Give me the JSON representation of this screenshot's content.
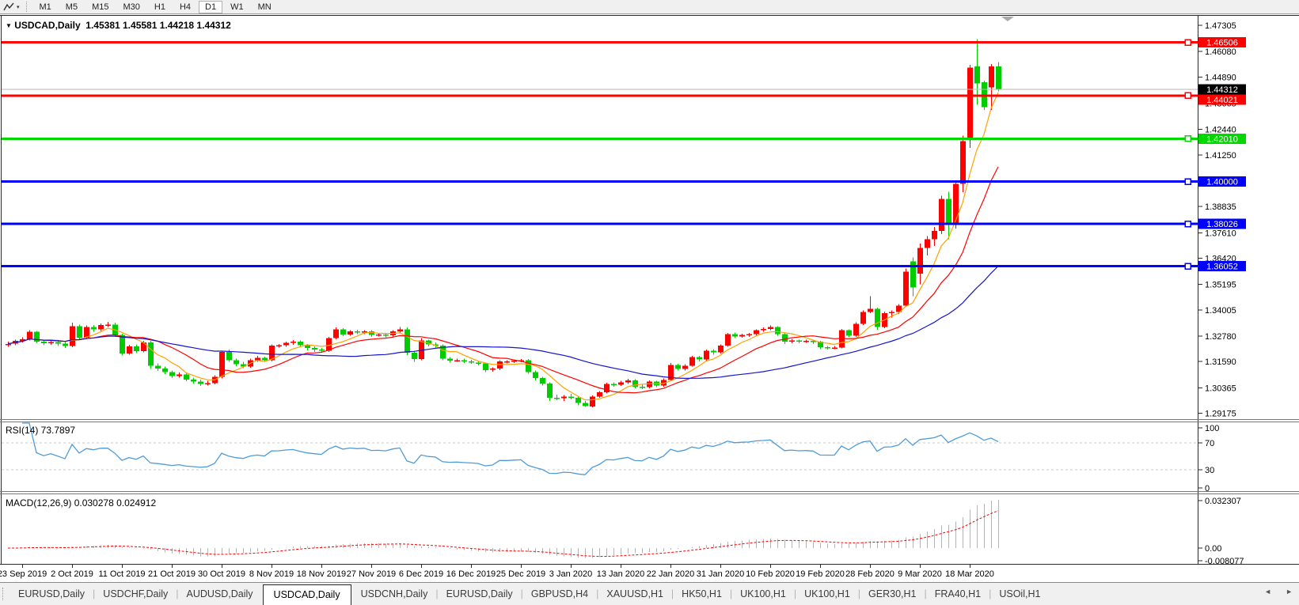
{
  "toolbar": {
    "timeframes": [
      "M1",
      "M5",
      "M15",
      "M30",
      "H1",
      "H4",
      "D1",
      "W1",
      "MN"
    ],
    "active_timeframe": "D1",
    "indicator_icon": "zigzag-indicator",
    "dropdown_caret": "▾"
  },
  "chart": {
    "collapse_caret": "▼",
    "title_symbol": "USDCAD,Daily",
    "title_ohlc": "1.45381 1.45581 1.44218 1.44312",
    "current_price": {
      "label": "1.44312",
      "value": 1.44312,
      "badge_bg": "#000000",
      "line_color": "#b4b4b4"
    },
    "price_axis": {
      "max": 1.4775,
      "min": 1.289,
      "ticks": [
        "1.47305",
        "1.46080",
        "1.44890",
        "1.43665",
        "1.42440",
        "1.41250",
        "1.38835",
        "1.37610",
        "1.36420",
        "1.35195",
        "1.34005",
        "1.32780",
        "1.31590",
        "1.30365",
        "1.29175"
      ]
    },
    "hlines": [
      {
        "label": "1.46506",
        "value": 1.46506,
        "color": "#ff0000"
      },
      {
        "label": "1.44021",
        "value": 1.44021,
        "color": "#ff0000"
      },
      {
        "label": "1.42010",
        "value": 1.4201,
        "color": "#00d800"
      },
      {
        "label": "1.40000",
        "value": 1.4,
        "color": "#0000ff"
      },
      {
        "label": "1.38026",
        "value": 1.38026,
        "color": "#0000ff"
      },
      {
        "label": "1.36052",
        "value": 1.36052,
        "color": "#0000ff"
      }
    ],
    "date_axis": [
      "23 Sep 2019",
      "2 Oct 2019",
      "11 Oct 2019",
      "21 Oct 2019",
      "30 Oct 2019",
      "8 Nov 2019",
      "18 Nov 2019",
      "27 Nov 2019",
      "6 Dec 2019",
      "16 Dec 2019",
      "25 Dec 2019",
      "3 Jan 2020",
      "13 Jan 2020",
      "22 Jan 2020",
      "31 Jan 2020",
      "10 Feb 2020",
      "19 Feb 2020",
      "28 Feb 2020",
      "9 Mar 2020",
      "18 Mar 2020"
    ]
  },
  "rsi_panel": {
    "label": "RSI(14) 73.7897",
    "period": 14,
    "current": 73.7897,
    "levels": [
      70,
      30
    ],
    "axis_labels": [
      "100",
      "70",
      "30",
      "0"
    ],
    "line_color": "#4f9bd8",
    "level_color": "#c8c8c8"
  },
  "macd_panel": {
    "label": "MACD(12,26,9) 0.030278 0.024912",
    "fast": 12,
    "slow": 26,
    "signal_period": 9,
    "main_value": 0.030278,
    "signal_value": 0.024912,
    "axis_labels": [
      "0.032307",
      "0.00",
      "-0.008077"
    ],
    "axis_max": 0.032307,
    "axis_min": -0.008077,
    "histogram_color": "#b4b4b4",
    "signal_color": "#ff0000"
  },
  "tabbar": {
    "scroll_left": "◄",
    "scroll_right": "►",
    "tabs": [
      {
        "label": "EURUSD,Daily",
        "active": false
      },
      {
        "label": "USDCHF,Daily",
        "active": false
      },
      {
        "label": "AUDUSD,Daily",
        "active": false
      },
      {
        "label": "USDCAD,Daily",
        "active": true
      },
      {
        "label": "USDCNH,Daily",
        "active": false
      },
      {
        "label": "EURUSD,Daily",
        "active": false
      },
      {
        "label": "GBPUSD,H4",
        "active": false
      },
      {
        "label": "XAUUSD,H1",
        "active": false
      },
      {
        "label": "HK50,H1",
        "active": false
      },
      {
        "label": "UK100,H1",
        "active": false
      },
      {
        "label": "UK100,H1",
        "active": false
      },
      {
        "label": "GER30,H1",
        "active": false
      },
      {
        "label": "FRA40,H1",
        "active": false
      },
      {
        "label": "USOil,H1",
        "active": false
      }
    ]
  },
  "chart_data": {
    "type": "candlestick",
    "symbol": "USDCAD",
    "timeframe": "Daily",
    "up_color": "#ff0000",
    "down_color": "#00cc00",
    "moving_averages": [
      {
        "period": 6,
        "color": "#ffa000"
      },
      {
        "period": 13,
        "color": "#ff0000"
      },
      {
        "period": 34,
        "color": "#1414cd"
      }
    ],
    "candles": [
      [
        1.3235,
        1.3252,
        1.3228,
        1.3242
      ],
      [
        1.3242,
        1.3262,
        1.3236,
        1.3255
      ],
      [
        1.3255,
        1.3272,
        1.3248,
        1.3263
      ],
      [
        1.3263,
        1.3305,
        1.3258,
        1.3298
      ],
      [
        1.3298,
        1.3302,
        1.3244,
        1.3253
      ],
      [
        1.3253,
        1.3262,
        1.3235,
        1.3244
      ],
      [
        1.3244,
        1.3259,
        1.3238,
        1.3251
      ],
      [
        1.3251,
        1.3258,
        1.3232,
        1.3243
      ],
      [
        1.3243,
        1.3251,
        1.3222,
        1.3232
      ],
      [
        1.3232,
        1.334,
        1.3227,
        1.3325
      ],
      [
        1.3325,
        1.3332,
        1.3262,
        1.327
      ],
      [
        1.327,
        1.3328,
        1.3265,
        1.332
      ],
      [
        1.332,
        1.333,
        1.3298,
        1.331
      ],
      [
        1.331,
        1.3338,
        1.3302,
        1.333
      ],
      [
        1.333,
        1.3345,
        1.332,
        1.3332
      ],
      [
        1.3332,
        1.334,
        1.3275,
        1.3284
      ],
      [
        1.3284,
        1.329,
        1.3188,
        1.3197
      ],
      [
        1.3197,
        1.3238,
        1.3192,
        1.323
      ],
      [
        1.323,
        1.324,
        1.3198,
        1.3207
      ],
      [
        1.3207,
        1.3255,
        1.3202,
        1.3248
      ],
      [
        1.3248,
        1.3255,
        1.3125,
        1.314
      ],
      [
        1.314,
        1.315,
        1.3115,
        1.3126
      ],
      [
        1.3126,
        1.3135,
        1.31,
        1.311
      ],
      [
        1.311,
        1.3118,
        1.3082,
        1.3091
      ],
      [
        1.3091,
        1.3108,
        1.3084,
        1.3099
      ],
      [
        1.3099,
        1.3105,
        1.3068,
        1.3075
      ],
      [
        1.3075,
        1.3084,
        1.3056,
        1.3066
      ],
      [
        1.3066,
        1.3075,
        1.3045,
        1.3054
      ],
      [
        1.3054,
        1.307,
        1.3048,
        1.3059
      ],
      [
        1.3059,
        1.3095,
        1.3052,
        1.3087
      ],
      [
        1.3087,
        1.321,
        1.308,
        1.3204
      ],
      [
        1.3204,
        1.3215,
        1.3158,
        1.3166
      ],
      [
        1.3166,
        1.3172,
        1.3138,
        1.3146
      ],
      [
        1.3146,
        1.3158,
        1.3128,
        1.3135
      ],
      [
        1.3135,
        1.3172,
        1.313,
        1.3165
      ],
      [
        1.3165,
        1.3185,
        1.3158,
        1.3177
      ],
      [
        1.3177,
        1.3182,
        1.3158,
        1.3165
      ],
      [
        1.3165,
        1.324,
        1.316,
        1.3233
      ],
      [
        1.3233,
        1.3242,
        1.3225,
        1.3235
      ],
      [
        1.3235,
        1.3252,
        1.3228,
        1.3246
      ],
      [
        1.3246,
        1.326,
        1.3238,
        1.3253
      ],
      [
        1.3253,
        1.3258,
        1.3228,
        1.3236
      ],
      [
        1.3236,
        1.3242,
        1.3212,
        1.3222
      ],
      [
        1.3222,
        1.323,
        1.3205,
        1.3215
      ],
      [
        1.3215,
        1.3222,
        1.32,
        1.3209
      ],
      [
        1.3209,
        1.3275,
        1.3204,
        1.3269
      ],
      [
        1.3269,
        1.3318,
        1.3264,
        1.331
      ],
      [
        1.331,
        1.3315,
        1.3278,
        1.3285
      ],
      [
        1.3285,
        1.3306,
        1.328,
        1.33
      ],
      [
        1.33,
        1.3308,
        1.3287,
        1.3295
      ],
      [
        1.3295,
        1.3306,
        1.3288,
        1.33
      ],
      [
        1.33,
        1.3305,
        1.3275,
        1.3283
      ],
      [
        1.3283,
        1.3292,
        1.3276,
        1.3285
      ],
      [
        1.3285,
        1.329,
        1.3272,
        1.3281
      ],
      [
        1.3281,
        1.3305,
        1.3275,
        1.33
      ],
      [
        1.33,
        1.332,
        1.3293,
        1.331
      ],
      [
        1.331,
        1.3318,
        1.319,
        1.32
      ],
      [
        1.32,
        1.3208,
        1.3158,
        1.317
      ],
      [
        1.317,
        1.3268,
        1.3165,
        1.3257
      ],
      [
        1.3257,
        1.3262,
        1.323,
        1.3239
      ],
      [
        1.3239,
        1.3248,
        1.3225,
        1.3233
      ],
      [
        1.3233,
        1.324,
        1.3165,
        1.3173
      ],
      [
        1.3173,
        1.318,
        1.3155,
        1.3164
      ],
      [
        1.3164,
        1.3172,
        1.3158,
        1.3166
      ],
      [
        1.3166,
        1.3172,
        1.3152,
        1.316
      ],
      [
        1.316,
        1.3168,
        1.3148,
        1.3155
      ],
      [
        1.3155,
        1.3162,
        1.3142,
        1.315
      ],
      [
        1.315,
        1.3155,
        1.311,
        1.312
      ],
      [
        1.312,
        1.3132,
        1.3112,
        1.3126
      ],
      [
        1.3126,
        1.3165,
        1.312,
        1.316
      ],
      [
        1.316,
        1.3166,
        1.315,
        1.316
      ],
      [
        1.316,
        1.3168,
        1.3152,
        1.3163
      ],
      [
        1.3163,
        1.317,
        1.3156,
        1.3165
      ],
      [
        1.3165,
        1.317,
        1.3102,
        1.311
      ],
      [
        1.311,
        1.3118,
        1.3072,
        1.3082
      ],
      [
        1.3082,
        1.3088,
        1.3048,
        1.3057
      ],
      [
        1.3057,
        1.3062,
        1.2975,
        1.299
      ],
      [
        1.299,
        1.3005,
        1.2978,
        1.2988
      ],
      [
        1.2988,
        1.3002,
        1.2975,
        1.2995
      ],
      [
        1.2995,
        1.3008,
        1.2982,
        1.299
      ],
      [
        1.299,
        1.2998,
        1.2955,
        1.2966
      ],
      [
        1.2966,
        1.2975,
        1.2948,
        1.295
      ],
      [
        1.295,
        1.3,
        1.2945,
        1.2995
      ],
      [
        1.2995,
        1.3022,
        1.299,
        1.3015
      ],
      [
        1.3015,
        1.306,
        1.301,
        1.3055
      ],
      [
        1.3055,
        1.3062,
        1.3042,
        1.3051
      ],
      [
        1.3051,
        1.307,
        1.3045,
        1.3062
      ],
      [
        1.3062,
        1.3078,
        1.3055,
        1.3071
      ],
      [
        1.3071,
        1.3076,
        1.3035,
        1.3042
      ],
      [
        1.3042,
        1.305,
        1.303,
        1.304
      ],
      [
        1.304,
        1.3072,
        1.3035,
        1.3066
      ],
      [
        1.3066,
        1.307,
        1.304,
        1.3048
      ],
      [
        1.3048,
        1.308,
        1.3042,
        1.3073
      ],
      [
        1.3073,
        1.3152,
        1.3068,
        1.3143
      ],
      [
        1.3143,
        1.3148,
        1.3118,
        1.3125
      ],
      [
        1.3125,
        1.3146,
        1.3118,
        1.314
      ],
      [
        1.314,
        1.3186,
        1.3135,
        1.318
      ],
      [
        1.318,
        1.3186,
        1.316,
        1.3169
      ],
      [
        1.3169,
        1.3216,
        1.3162,
        1.321
      ],
      [
        1.321,
        1.3218,
        1.3192,
        1.3202
      ],
      [
        1.3202,
        1.324,
        1.3196,
        1.3233
      ],
      [
        1.3233,
        1.3292,
        1.3228,
        1.3287
      ],
      [
        1.3287,
        1.3294,
        1.3268,
        1.3276
      ],
      [
        1.3276,
        1.329,
        1.327,
        1.3283
      ],
      [
        1.3283,
        1.3292,
        1.3275,
        1.3287
      ],
      [
        1.3287,
        1.331,
        1.328,
        1.3305
      ],
      [
        1.3305,
        1.3318,
        1.3298,
        1.3312
      ],
      [
        1.3312,
        1.3328,
        1.3305,
        1.332
      ],
      [
        1.332,
        1.3325,
        1.328,
        1.3288
      ],
      [
        1.3288,
        1.3292,
        1.3242,
        1.3252
      ],
      [
        1.3252,
        1.3265,
        1.3245,
        1.3258
      ],
      [
        1.3258,
        1.3262,
        1.3244,
        1.3253
      ],
      [
        1.3253,
        1.3262,
        1.3246,
        1.3255
      ],
      [
        1.3255,
        1.326,
        1.3242,
        1.3252
      ],
      [
        1.3252,
        1.3256,
        1.3218,
        1.3226
      ],
      [
        1.3226,
        1.3232,
        1.3215,
        1.3225
      ],
      [
        1.3225,
        1.3232,
        1.3218,
        1.3225
      ],
      [
        1.3225,
        1.3312,
        1.322,
        1.3305
      ],
      [
        1.3305,
        1.331,
        1.3272,
        1.328
      ],
      [
        1.328,
        1.3342,
        1.3275,
        1.3336
      ],
      [
        1.3336,
        1.3398,
        1.333,
        1.339
      ],
      [
        1.339,
        1.3465,
        1.3385,
        1.3406
      ],
      [
        1.3406,
        1.3412,
        1.3308,
        1.332
      ],
      [
        1.332,
        1.3392,
        1.3315,
        1.3385
      ],
      [
        1.3385,
        1.3398,
        1.3365,
        1.339
      ],
      [
        1.339,
        1.3428,
        1.3382,
        1.342
      ],
      [
        1.342,
        1.3595,
        1.3415,
        1.358
      ],
      [
        1.3627,
        1.3645,
        1.3465,
        1.3505
      ],
      [
        1.357,
        1.371,
        1.352,
        1.369
      ],
      [
        1.369,
        1.3745,
        1.3655,
        1.373
      ],
      [
        1.373,
        1.3788,
        1.37,
        1.377
      ],
      [
        1.377,
        1.3935,
        1.3755,
        1.392
      ],
      [
        1.392,
        1.3952,
        1.373,
        1.38
      ],
      [
        1.38,
        1.4002,
        1.378,
        1.399
      ],
      [
        1.399,
        1.4215,
        1.395,
        1.419
      ],
      [
        1.4194,
        1.4545,
        1.4157,
        1.4533
      ],
      [
        1.4539,
        1.4666,
        1.436,
        1.4459
      ],
      [
        1.4465,
        1.4472,
        1.4336,
        1.4348
      ],
      [
        1.444,
        1.4549,
        1.4336,
        1.4538
      ],
      [
        1.45381,
        1.45581,
        1.44218,
        1.44312
      ]
    ]
  }
}
